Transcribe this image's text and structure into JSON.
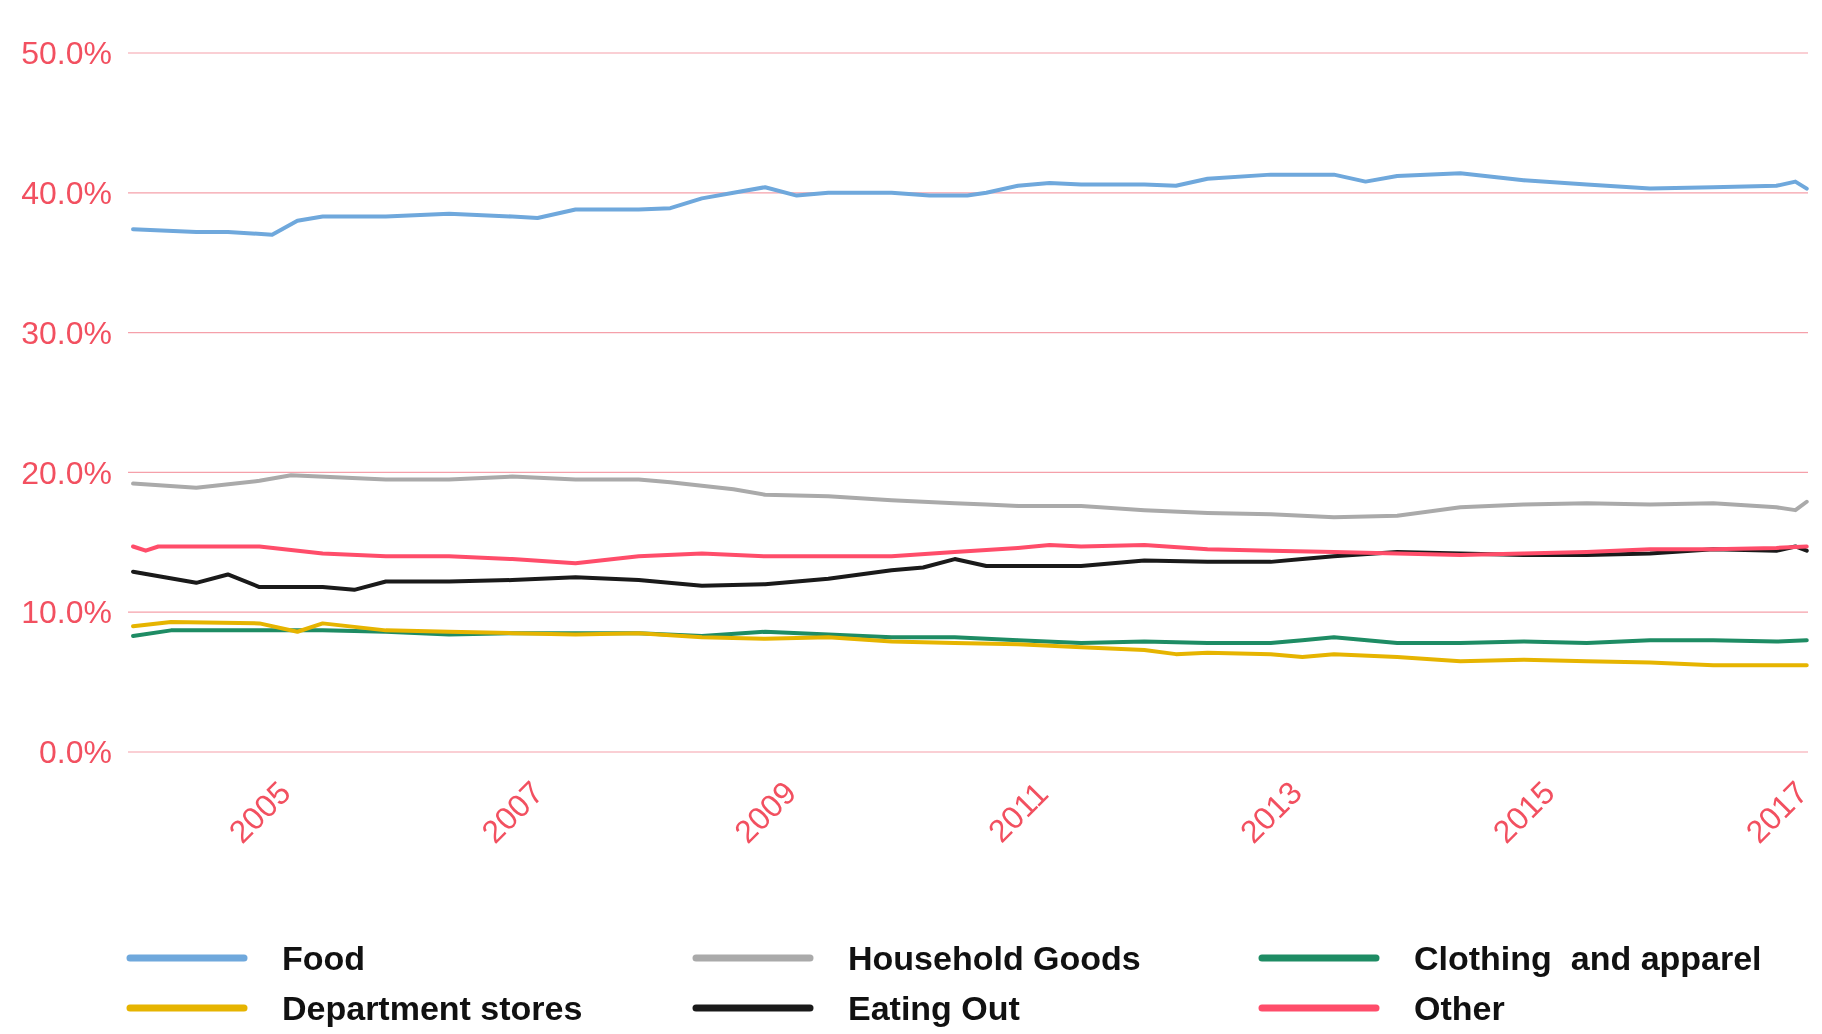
{
  "chart_data": {
    "type": "line",
    "xlim": [
      2003.96,
      2017.25
    ],
    "xticks": [
      2005,
      2007,
      2009,
      2011,
      2013,
      2015,
      2017
    ],
    "ylim": [
      0,
      50
    ],
    "yticks": [
      {
        "value": 0,
        "label": "0.0%"
      },
      {
        "value": 10,
        "label": "10.0%"
      },
      {
        "value": 20,
        "label": "20.0%"
      },
      {
        "value": 30,
        "label": "30.0%"
      },
      {
        "value": 40,
        "label": "40.0%"
      },
      {
        "value": 50,
        "label": "50.0%"
      }
    ],
    "grid": "y",
    "legend": "bottom",
    "series": [
      {
        "name": "Food",
        "color": "#6fa8dc",
        "x": [
          2004,
          2004.5,
          2004.75,
          2005.1,
          2005.3,
          2005.5,
          2006,
          2006.5,
          2007,
          2007.2,
          2007.5,
          2008,
          2008.25,
          2008.5,
          2008.75,
          2009,
          2009.25,
          2009.5,
          2010,
          2010.3,
          2010.6,
          2010.75,
          2011,
          2011.25,
          2011.5,
          2012,
          2012.25,
          2012.5,
          2013,
          2013.5,
          2013.75,
          2014,
          2014.5,
          2015,
          2015.5,
          2016,
          2016.5,
          2017,
          2017.15,
          2017.24
        ],
        "values": [
          37.4,
          37.2,
          37.2,
          37.0,
          38.0,
          38.3,
          38.3,
          38.5,
          38.3,
          38.2,
          38.8,
          38.8,
          38.9,
          39.6,
          40.0,
          40.4,
          39.8,
          40.0,
          40.0,
          39.8,
          39.8,
          40.0,
          40.5,
          40.7,
          40.6,
          40.6,
          40.5,
          41.0,
          41.3,
          41.3,
          40.8,
          41.2,
          41.4,
          40.9,
          40.6,
          40.3,
          40.4,
          40.5,
          40.8,
          40.3
        ]
      },
      {
        "name": "Household Goods",
        "color": "#aaaaaa",
        "x": [
          2004,
          2004.5,
          2005,
          2005.25,
          2006,
          2006.5,
          2007,
          2007.5,
          2008,
          2008.25,
          2008.75,
          2009,
          2009.5,
          2010,
          2010.5,
          2010.75,
          2011,
          2011.5,
          2012,
          2012.5,
          2013,
          2013.5,
          2014,
          2014.5,
          2015,
          2015.5,
          2016,
          2016.5,
          2017,
          2017.15,
          2017.24
        ],
        "values": [
          19.2,
          18.9,
          19.4,
          19.8,
          19.5,
          19.5,
          19.7,
          19.5,
          19.5,
          19.3,
          18.8,
          18.4,
          18.3,
          18.0,
          17.8,
          17.7,
          17.6,
          17.6,
          17.3,
          17.1,
          17.0,
          16.8,
          16.9,
          17.5,
          17.7,
          17.8,
          17.7,
          17.8,
          17.5,
          17.3,
          17.9
        ]
      },
      {
        "name": "Clothing  and apparel",
        "color": "#1e8c64",
        "x": [
          2004,
          2004.3,
          2005,
          2005.5,
          2006,
          2006.5,
          2007,
          2007.5,
          2008,
          2008.5,
          2009,
          2009.5,
          2010,
          2010.5,
          2011,
          2011.5,
          2012,
          2012.5,
          2013,
          2013.25,
          2013.5,
          2014,
          2014.5,
          2015,
          2015.5,
          2016,
          2016.5,
          2017,
          2017.24
        ],
        "values": [
          8.3,
          8.7,
          8.7,
          8.7,
          8.6,
          8.4,
          8.5,
          8.5,
          8.5,
          8.3,
          8.6,
          8.4,
          8.2,
          8.2,
          8.0,
          7.8,
          7.9,
          7.8,
          7.8,
          8.0,
          8.2,
          7.8,
          7.8,
          7.9,
          7.8,
          8.0,
          8.0,
          7.9,
          8.0
        ]
      },
      {
        "name": "Department stores",
        "color": "#e6b400",
        "x": [
          2004,
          2004.3,
          2005,
          2005.3,
          2005.5,
          2006,
          2006.5,
          2007,
          2007.5,
          2008,
          2008.5,
          2009,
          2009.5,
          2010,
          2010.5,
          2011,
          2011.5,
          2012,
          2012.25,
          2012.5,
          2013,
          2013.25,
          2013.5,
          2014,
          2014.5,
          2015,
          2015.5,
          2016,
          2016.5,
          2017,
          2017.24
        ],
        "values": [
          9.0,
          9.3,
          9.2,
          8.6,
          9.2,
          8.7,
          8.6,
          8.5,
          8.4,
          8.5,
          8.2,
          8.1,
          8.2,
          7.9,
          7.8,
          7.7,
          7.5,
          7.3,
          7.0,
          7.1,
          7.0,
          6.8,
          7.0,
          6.8,
          6.5,
          6.6,
          6.5,
          6.4,
          6.2,
          6.2,
          6.2
        ]
      },
      {
        "name": "Eating Out",
        "color": "#1a1a1a",
        "x": [
          2004,
          2004.25,
          2004.5,
          2004.75,
          2005,
          2005.5,
          2005.75,
          2006,
          2006.5,
          2007,
          2007.5,
          2008,
          2008.5,
          2009,
          2009.5,
          2010,
          2010.25,
          2010.5,
          2010.75,
          2011,
          2011.5,
          2012,
          2012.5,
          2013,
          2013.25,
          2013.5,
          2014,
          2014.5,
          2015,
          2015.5,
          2016,
          2016.5,
          2017,
          2017.15,
          2017.24
        ],
        "values": [
          12.9,
          12.5,
          12.1,
          12.7,
          11.8,
          11.8,
          11.6,
          12.2,
          12.2,
          12.3,
          12.5,
          12.3,
          11.9,
          12.0,
          12.4,
          13.0,
          13.2,
          13.8,
          13.3,
          13.3,
          13.3,
          13.7,
          13.6,
          13.6,
          13.8,
          14.0,
          14.3,
          14.2,
          14.1,
          14.1,
          14.2,
          14.5,
          14.4,
          14.7,
          14.4
        ]
      },
      {
        "name": "Other",
        "color": "#ff4d6a",
        "x": [
          2004,
          2004.1,
          2004.2,
          2005,
          2005.5,
          2006,
          2006.5,
          2007,
          2007.5,
          2008,
          2008.5,
          2009,
          2009.5,
          2010,
          2010.5,
          2011,
          2011.25,
          2011.5,
          2012,
          2012.5,
          2013,
          2013.5,
          2014,
          2014.5,
          2015,
          2015.5,
          2016,
          2016.5,
          2017,
          2017.24
        ],
        "values": [
          14.7,
          14.4,
          14.7,
          14.7,
          14.2,
          14.0,
          14.0,
          13.8,
          13.5,
          14.0,
          14.2,
          14.0,
          14.0,
          14.0,
          14.3,
          14.6,
          14.8,
          14.7,
          14.8,
          14.5,
          14.4,
          14.3,
          14.2,
          14.1,
          14.2,
          14.3,
          14.5,
          14.5,
          14.6,
          14.7
        ]
      }
    ]
  }
}
